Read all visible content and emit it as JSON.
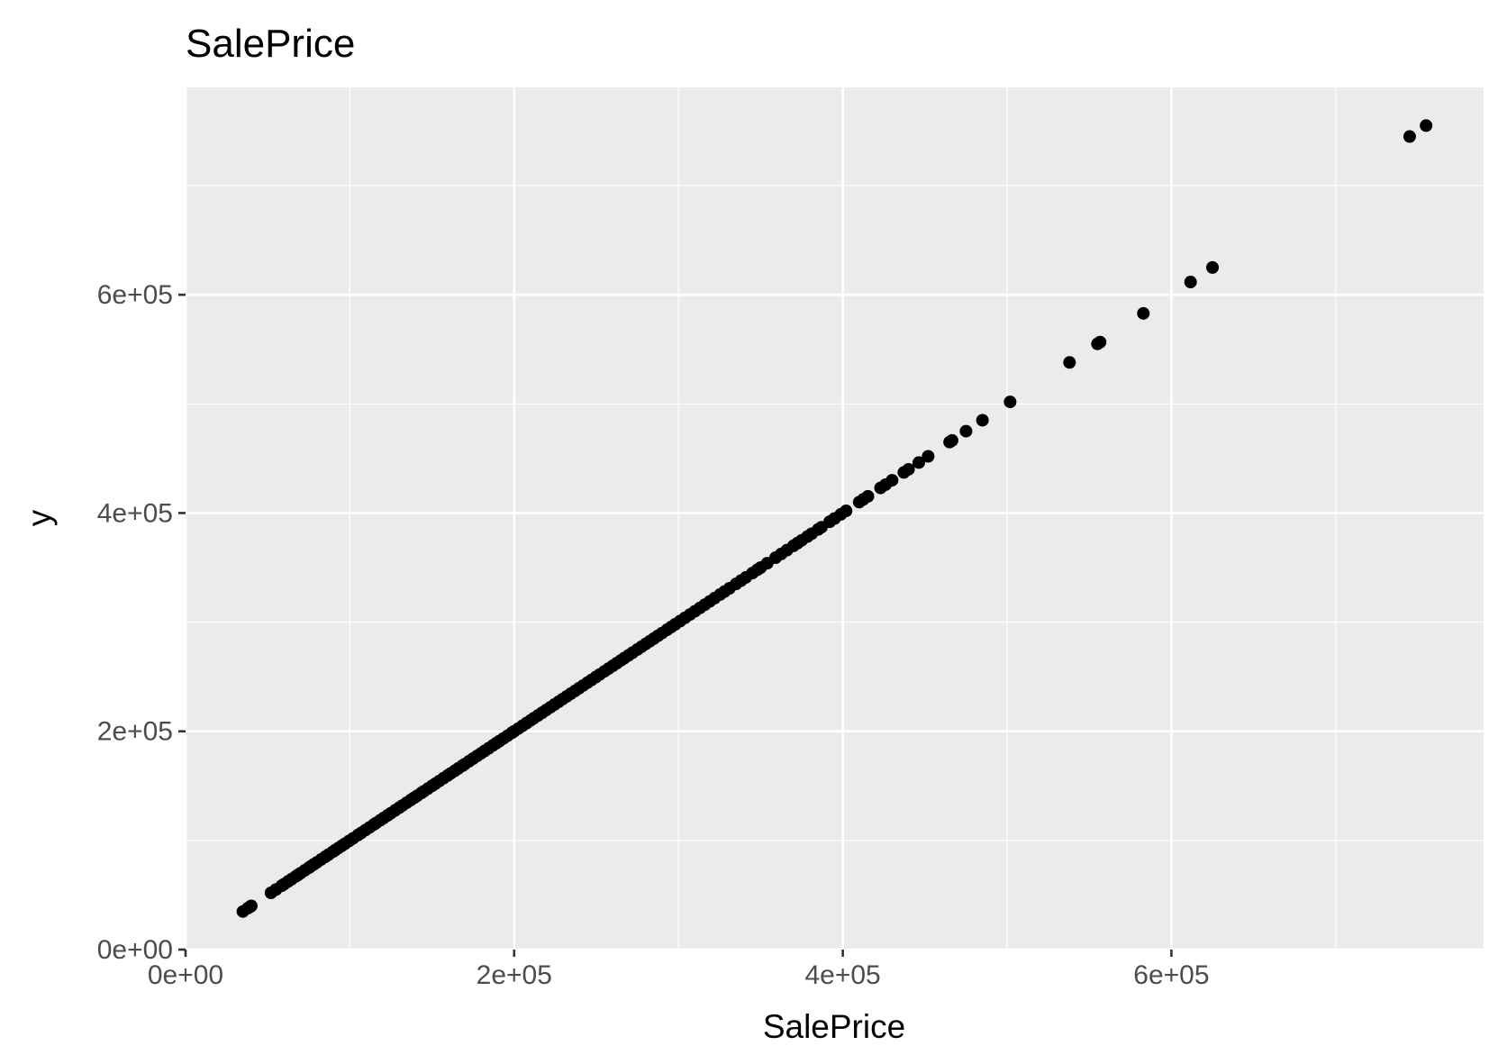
{
  "chart_data": {
    "type": "scatter",
    "title": "SalePrice",
    "xlabel": "SalePrice",
    "ylabel": "y",
    "xlim": [
      0,
      790000
    ],
    "ylim": [
      0,
      790000
    ],
    "x_ticks": [
      0,
      200000,
      400000,
      600000
    ],
    "x_tick_labels": [
      "0e+00",
      "2e+05",
      "4e+05",
      "6e+05"
    ],
    "y_ticks": [
      0,
      200000,
      400000,
      600000
    ],
    "y_tick_labels": [
      "0e+00",
      "2e+05",
      "4e+05",
      "6e+05"
    ],
    "x_minor_ticks": [
      100000,
      300000,
      500000,
      700000
    ],
    "y_minor_ticks": [
      100000,
      300000,
      500000,
      700000
    ],
    "grid": true,
    "panel_background": "#ebebeb",
    "grid_color": "#ffffff",
    "point_color": "#000000",
    "points_x": [
      34900,
      37900,
      39300,
      40000,
      52000,
      55000,
      58500,
      60000,
      62383,
      64500,
      67000,
      68400,
      70000,
      72500,
      75000,
      76000,
      78000,
      80000,
      82500,
      85000,
      87000,
      89500,
      91000,
      93000,
      95000,
      97000,
      99500,
      102000,
      104900,
      107000,
      109500,
      112000,
      114500,
      116000,
      118500,
      120500,
      123000,
      125000,
      127500,
      129900,
      132000,
      134500,
      137000,
      139000,
      141000,
      143500,
      145000,
      147500,
      150000,
      152000,
      154500,
      157000,
      159500,
      161500,
      163990,
      166000,
      168500,
      170000,
      172500,
      175000,
      177500,
      179900,
      182000,
      184500,
      187000,
      189000,
      191000,
      193500,
      196000,
      198500,
      200000,
      202500,
      205000,
      207500,
      210000,
      212000,
      214500,
      217000,
      219500,
      222000,
      224500,
      227000,
      229500,
      232000,
      234500,
      237000,
      239500,
      242000,
      244600,
      247000,
      249700,
      252000,
      254900,
      257500,
      260000,
      262500,
      265000,
      267000,
      269500,
      272000,
      275000,
      277500,
      280000,
      282500,
      285000,
      287500,
      290000,
      293000,
      295500,
      298000,
      301000,
      304000,
      307000,
      310000,
      313000,
      316000,
      319000,
      322000,
      325300,
      328000,
      331000,
      335000,
      338000,
      341000,
      345000,
      348000,
      350000,
      354000,
      359100,
      362500,
      366000,
      369900,
      372500,
      375000,
      378500,
      381000,
      385000,
      387000,
      392000,
      395000,
      398800,
      402000,
      410000,
      412500,
      415298,
      423000,
      426000,
      430000,
      437154,
      440000,
      446261,
      451950,
      465000,
      466500,
      475000,
      485000,
      501837,
      538000,
      555000,
      556581,
      582933,
      611657,
      625000,
      745000,
      755000
    ],
    "points_y": [
      34900,
      37900,
      39300,
      40000,
      52000,
      55000,
      58500,
      60000,
      62383,
      64500,
      67000,
      68400,
      70000,
      72500,
      75000,
      76000,
      78000,
      80000,
      82500,
      85000,
      87000,
      89500,
      91000,
      93000,
      95000,
      97000,
      99500,
      102000,
      104900,
      107000,
      109500,
      112000,
      114500,
      116000,
      118500,
      120500,
      123000,
      125000,
      127500,
      129900,
      132000,
      134500,
      137000,
      139000,
      141000,
      143500,
      145000,
      147500,
      150000,
      152000,
      154500,
      157000,
      159500,
      161500,
      163990,
      166000,
      168500,
      170000,
      172500,
      175000,
      177500,
      179900,
      182000,
      184500,
      187000,
      189000,
      191000,
      193500,
      196000,
      198500,
      200000,
      202500,
      205000,
      207500,
      210000,
      212000,
      214500,
      217000,
      219500,
      222000,
      224500,
      227000,
      229500,
      232000,
      234500,
      237000,
      239500,
      242000,
      244600,
      247000,
      249700,
      252000,
      254900,
      257500,
      260000,
      262500,
      265000,
      267000,
      269500,
      272000,
      275000,
      277500,
      280000,
      282500,
      285000,
      287500,
      290000,
      293000,
      295500,
      298000,
      301000,
      304000,
      307000,
      310000,
      313000,
      316000,
      319000,
      322000,
      325300,
      328000,
      331000,
      335000,
      338000,
      341000,
      345000,
      348000,
      350000,
      354000,
      359100,
      362500,
      366000,
      369900,
      372500,
      375000,
      378500,
      381000,
      385000,
      387000,
      392000,
      395000,
      398800,
      402000,
      410000,
      412500,
      415298,
      423000,
      426000,
      430000,
      437154,
      440000,
      446261,
      451950,
      465000,
      466500,
      475000,
      485000,
      501837,
      538000,
      555000,
      556581,
      582933,
      611657,
      625000,
      745000,
      755000
    ]
  }
}
